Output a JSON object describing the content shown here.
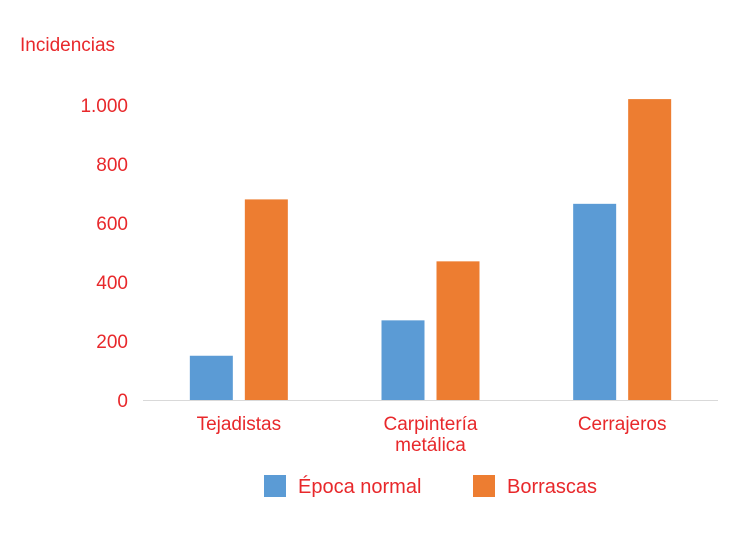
{
  "chart_data": {
    "type": "bar",
    "ylabel": "Incidencias",
    "ylim": [
      0,
      1000
    ],
    "yticks": [
      0,
      200,
      400,
      600,
      800,
      1000
    ],
    "ytick_labels": [
      "0",
      "200",
      "400",
      "600",
      "800",
      "1.000"
    ],
    "categories": [
      [
        "Tejadistas"
      ],
      [
        "Carpintería",
        "metálica"
      ],
      [
        "Cerrajeros"
      ]
    ],
    "series": [
      {
        "name": "Época normal",
        "values": [
          150,
          270,
          665
        ],
        "color": "#5b9bd5"
      },
      {
        "name": "Borrascas",
        "values": [
          680,
          470,
          1020
        ],
        "color": "#ed7d31"
      }
    ],
    "label_color": "#e8282b",
    "legend_position": "bottom"
  }
}
